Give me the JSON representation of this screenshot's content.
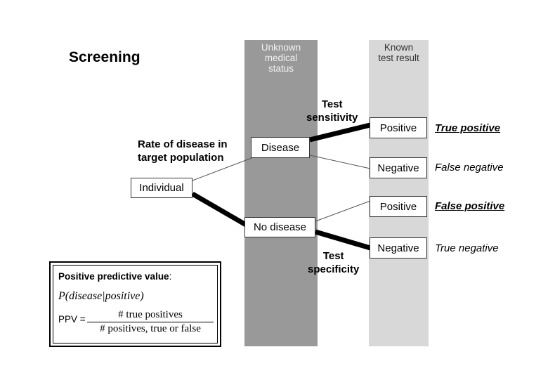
{
  "title": "Screening",
  "columns": {
    "medical": "Unknown\nmedical\nstatus",
    "test": "Known\ntest result"
  },
  "nodes": {
    "individual": "Individual",
    "disease": "Disease",
    "no_disease": "No disease",
    "positive_1": "Positive",
    "negative_1": "Negative",
    "positive_2": "Positive",
    "negative_2": "Negative"
  },
  "labels": {
    "rate": "Rate of disease in\ntarget population",
    "sensitivity": "Test\nsensitivity",
    "specificity": "Test\nspecificity"
  },
  "outcomes": {
    "true_positive": "True positive",
    "false_negative": "False negative",
    "false_positive": "False positive",
    "true_negative": "True negative"
  },
  "ppv": {
    "title": "Positive predictive value",
    "colon": ":",
    "probability": "P(disease|positive)",
    "equation_lhs": "PPV =",
    "numerator": "# true positives",
    "denominator": "# positives, true or false"
  }
}
